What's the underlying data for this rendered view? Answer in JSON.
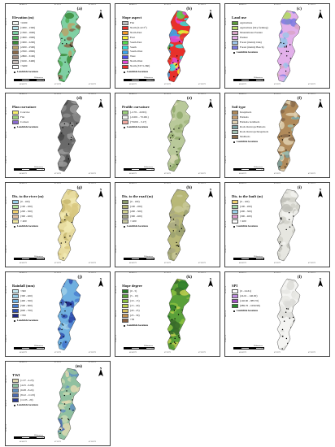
{
  "ticks": {
    "top": [
      "46°40'0\"E",
      "47°0'0\"E",
      "47°20'0\"E"
    ],
    "bottom": [
      "46°40'0\"E",
      "47°0'0\"E",
      "47°20'0\"E"
    ],
    "left": [
      "34°20'0\"N",
      "34°0'0\"N",
      "33°40'0\"N"
    ]
  },
  "north_label": "N",
  "landslide_label": "Landslide locations",
  "scale": {
    "unit": "Kilometers",
    "nums": [
      "0",
      "5",
      "10",
      "20"
    ]
  },
  "panels": [
    {
      "id": "a",
      "label": "(a)",
      "title": "Elevation (m)",
      "items": [
        {
          "text": "<1000",
          "color": "#f3f6f2"
        },
        {
          "text": "(1000 - 1300)",
          "color": "#b6e3e9"
        },
        {
          "text": "(1300 - 1600)",
          "color": "#7fd0a3"
        },
        {
          "text": "(1600 - 1900)",
          "color": "#4fae58"
        },
        {
          "text": "(1900 - 2200)",
          "color": "#3a8a3a"
        },
        {
          "text": "(2200 - 2500)",
          "color": "#b9a36a"
        },
        {
          "text": "(2500 - 2800)",
          "color": "#8a6a4a"
        },
        {
          "text": "(2800 - 3100)",
          "color": "#a08a7e"
        },
        {
          "text": "(3100 - 3400)",
          "color": "#c9c0bb"
        },
        {
          "text": ">3400",
          "color": "#ffffff"
        }
      ],
      "colors": [
        "#7fd0a3",
        "#4fae58",
        "#b9a36a",
        "#8a6a4a",
        "#3a8a3a"
      ]
    },
    {
      "id": "b",
      "label": "(b)",
      "title": "Slope aspect",
      "items": [
        {
          "text": "Flat",
          "color": "#c0c0c0"
        },
        {
          "text": "North (0-22.5°)",
          "color": "#e8302a"
        },
        {
          "text": "North-East",
          "color": "#f49a2a"
        },
        {
          "text": "East",
          "color": "#f7f035"
        },
        {
          "text": "South-East",
          "color": "#56d64a"
        },
        {
          "text": "South",
          "color": "#35e0d9"
        },
        {
          "text": "South-West",
          "color": "#3aa8ee"
        },
        {
          "text": "West",
          "color": "#4a4ee8"
        },
        {
          "text": "North-West",
          "color": "#e24ad9"
        },
        {
          "text": "North (337.5-360)",
          "color": "#e8302a"
        }
      ],
      "colors": [
        "#e8302a",
        "#f7f035",
        "#56d64a",
        "#3aa8ee",
        "#e24ad9",
        "#35e0d9"
      ]
    },
    {
      "id": "c",
      "label": "(c)",
      "title": "Land use",
      "items": [
        {
          "text": "Agriculture",
          "color": "#5b9a3a"
        },
        {
          "text": "Agriculture (Dry farming)",
          "color": "#b5d86a"
        },
        {
          "text": "Mountainous Pasture",
          "color": "#d9a6c8"
        },
        {
          "text": "Pasture",
          "color": "#e2b0ea"
        },
        {
          "text": "Forest (mainly Oak)",
          "color": "#9fc5e8"
        },
        {
          "text": "Forest (mainly Beech)",
          "color": "#7a7ae0"
        }
      ],
      "colors": [
        "#e2b0ea",
        "#9fc5e8",
        "#b5d86a",
        "#7a7ae0",
        "#d9a6c8"
      ]
    },
    {
      "id": "d",
      "label": "(d)",
      "title": "Plan curvature",
      "items": [
        {
          "text": "Concave",
          "color": "#f7ef6a"
        },
        {
          "text": "Flat",
          "color": "#9bd07a"
        },
        {
          "text": "Convex",
          "color": "#8a6ad0"
        }
      ],
      "colors": [
        "#6a6a6a",
        "#8a8a8a",
        "#4a4a4a",
        "#9a9a9a"
      ]
    },
    {
      "id": "e",
      "label": "(e)",
      "title": "Profile curvature",
      "items": [
        {
          "text": "(-2.76 - -0.001)",
          "color": "#9bd07a"
        },
        {
          "text": "(-0.001 - +0.001)",
          "color": "#f3f6f2"
        },
        {
          "text": "(+0.001 - 3.17)",
          "color": "#f2a9a0"
        }
      ],
      "colors": [
        "#b9c99a",
        "#8ea86a",
        "#d2d6b0",
        "#a4b880"
      ]
    },
    {
      "id": "f",
      "label": "(f)",
      "title": "Soil type",
      "items": [
        {
          "text": "Inceptisols",
          "color": "#b08a5a"
        },
        {
          "text": "Entisols",
          "color": "#c9a070"
        },
        {
          "text": "Entisols/ Aridisols",
          "color": "#e0d0b0"
        },
        {
          "text": "Rock Outcrops/Entisols",
          "color": "#7aa0a0"
        },
        {
          "text": "Rock Outcrops/Inceptisols",
          "color": "#a0c0b0"
        },
        {
          "text": "Mollisols",
          "color": "#8a6a4a"
        }
      ],
      "colors": [
        "#b08a5a",
        "#7aa0a0",
        "#e0d0b0",
        "#8a6a4a",
        "#a0c0b0"
      ]
    },
    {
      "id": "g",
      "label": "(g)",
      "title": "Dis. to the river (m)",
      "items": [
        {
          "text": "(0 - 100)",
          "color": "#9bd0e8"
        },
        {
          "text": "(100 - 200)",
          "color": "#b6e3a0"
        },
        {
          "text": "(200 - 300)",
          "color": "#f0d070"
        },
        {
          "text": "(300 - 400)",
          "color": "#e0c0a0"
        },
        {
          "text": "> 400",
          "color": "#f0e8a0"
        }
      ],
      "colors": [
        "#e8dca0",
        "#d8c880",
        "#c8b870",
        "#f0e8b0"
      ]
    },
    {
      "id": "h",
      "label": "(h)",
      "title": "Dis. to the road (m)",
      "items": [
        {
          "text": "(0 - 100)",
          "color": "#8a9a6a"
        },
        {
          "text": "(100 - 200)",
          "color": "#b0b070"
        },
        {
          "text": "(200 - 300)",
          "color": "#d0d090"
        },
        {
          "text": "(300 - 400)",
          "color": "#a0a080"
        },
        {
          "text": "> 400",
          "color": "#c8c8a0"
        }
      ],
      "colors": [
        "#b8b878",
        "#9aa070",
        "#c8c898",
        "#a8a880"
      ]
    },
    {
      "id": "i",
      "label": "(i)",
      "title": "Dis. to the fault (m)",
      "items": [
        {
          "text": "(0 - 100)",
          "color": "#f0d070"
        },
        {
          "text": "(100 - 200)",
          "color": "#a0d0a0"
        },
        {
          "text": "(200 - 300)",
          "color": "#9bd0e8"
        },
        {
          "text": "(300 - 400)",
          "color": "#e0a0d0"
        },
        {
          "text": "> 400",
          "color": "#ffffff"
        }
      ],
      "colors": [
        "#e6e6e0",
        "#d0d0c8",
        "#f2f2ee",
        "#c0c0b8"
      ]
    },
    {
      "id": "j",
      "label": "(j)",
      "title": "Rainfall (mm)",
      "items": [
        {
          "text": "<300",
          "color": "#c8e8f0"
        },
        {
          "text": "(300 - 400)",
          "color": "#a0d0e8"
        },
        {
          "text": "(400 - 500)",
          "color": "#70b0e0"
        },
        {
          "text": "(500 - 600)",
          "color": "#4a80d0"
        },
        {
          "text": "(600 - 700)",
          "color": "#3050b0"
        },
        {
          "text": ">700",
          "color": "#202880"
        }
      ],
      "colors": [
        "#70b0e0",
        "#4a80d0",
        "#3050b0",
        "#a0d0e8",
        "#202880"
      ]
    },
    {
      "id": "k",
      "label": "(k)",
      "title": "Slope degree",
      "items": [
        {
          "text": "(0 - 5)",
          "color": "#2a7a2a"
        },
        {
          "text": "(5 - 10)",
          "color": "#5aa03a"
        },
        {
          "text": "(10 - 15)",
          "color": "#8ac040"
        },
        {
          "text": "(15 - 20)",
          "color": "#c0d050"
        },
        {
          "text": "(20 - 25)",
          "color": "#d8c060"
        },
        {
          "text": "(25 - 30)",
          "color": "#c09050"
        },
        {
          "text": ">30",
          "color": "#8a6040"
        }
      ],
      "colors": [
        "#5aa03a",
        "#2a7a2a",
        "#8ac040",
        "#3a6a2a",
        "#c0d050"
      ]
    },
    {
      "id": "l",
      "label": "(l)",
      "title": "SPI",
      "items": [
        {
          "text": "(0 - 24.61)",
          "color": "#ffffff"
        },
        {
          "text": "(24.61 - 146.60)",
          "color": "#c090e0"
        },
        {
          "text": "(146.60 - 989.76)",
          "color": "#a050c0"
        },
        {
          "text": "(989.76 - 1690.98)",
          "color": "#2a8a2a"
        }
      ],
      "colors": [
        "#f4f4f2",
        "#e8e8e4",
        "#dcdcd8"
      ]
    },
    {
      "id": "m",
      "label": "(m)",
      "title": "TWI",
      "items": [
        {
          "text": "(1.37 - 4.25)",
          "color": "#e0d8b0"
        },
        {
          "text": "(4.25 - 6.08)",
          "color": "#90c0a0"
        },
        {
          "text": "(6.08 - 8.22)",
          "color": "#6090c0"
        },
        {
          "text": "(8.22 - 11.03)",
          "color": "#4a6ab0"
        },
        {
          "text": "(11.03 - 20)",
          "color": "#2a3a90"
        }
      ],
      "colors": [
        "#90c0a0",
        "#6090c0",
        "#c8d8b0",
        "#4a6ab0",
        "#e0d8b0"
      ]
    }
  ]
}
